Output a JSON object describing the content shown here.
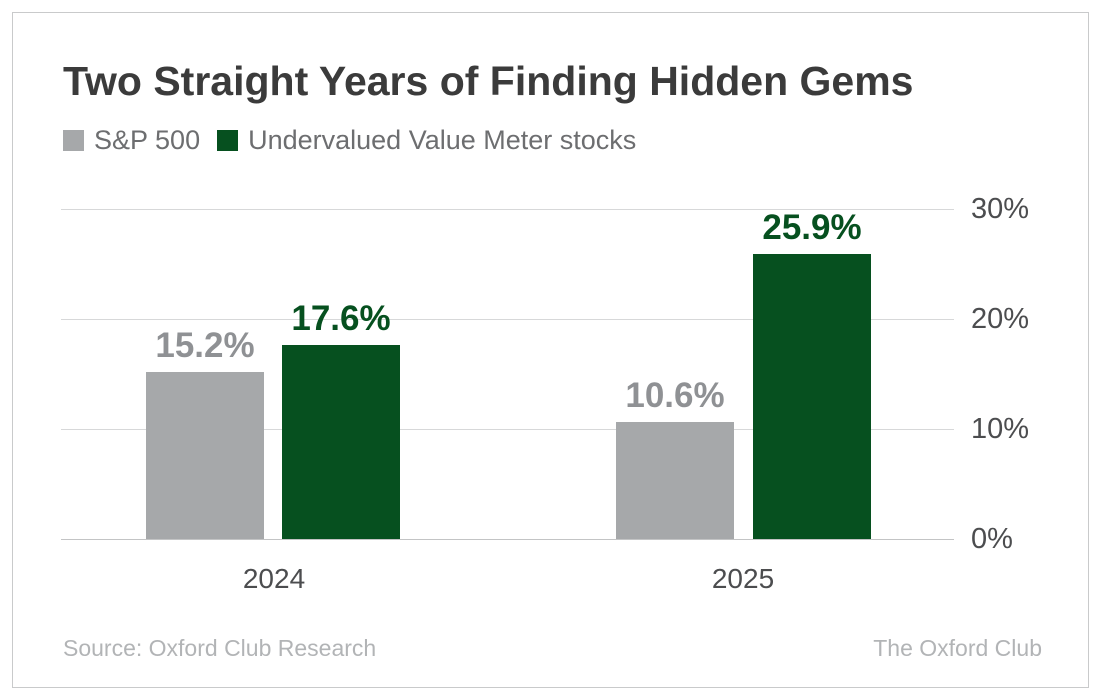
{
  "title": "Two Straight Years of Finding Hidden Gems",
  "legend": {
    "items": [
      {
        "label": "S&P 500",
        "color": "#a6a8aa"
      },
      {
        "label": "Undervalued Value Meter stocks",
        "color": "#06501f"
      }
    ]
  },
  "chart_data": {
    "type": "bar",
    "categories": [
      "2024",
      "2025"
    ],
    "series": [
      {
        "name": "S&P 500",
        "color": "#a6a8aa",
        "label_color": "#8f9194",
        "values": [
          15.2,
          10.6
        ],
        "value_labels": [
          "15.2%",
          "10.6%"
        ]
      },
      {
        "name": "Undervalued Value Meter stocks",
        "color": "#06501f",
        "label_color": "#06501f",
        "values": [
          17.6,
          25.9
        ],
        "value_labels": [
          "17.6%",
          "25.9%"
        ]
      }
    ],
    "xlabel": "",
    "ylabel": "",
    "ylim": [
      0,
      30
    ],
    "yticks": [
      "30%",
      "20%",
      "10%",
      "0%"
    ],
    "ytick_values": [
      30,
      20,
      10,
      0
    ],
    "grid": true,
    "legend_position": "top-left",
    "value_labels_shown": true
  },
  "footer": {
    "source": "Source: Oxford Club Research",
    "brand": "The Oxford Club"
  }
}
